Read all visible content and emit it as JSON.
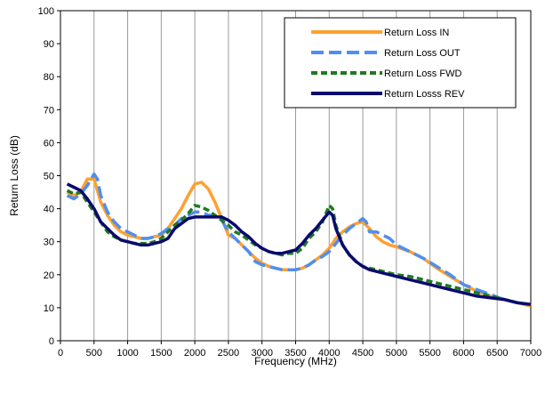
{
  "chart_data": {
    "type": "line",
    "title": "",
    "xlabel": "Frequency (MHz)",
    "ylabel": "Return Loss (dB)",
    "xlim": [
      0,
      7000
    ],
    "ylim": [
      0,
      100
    ],
    "x_ticks": [
      0,
      500,
      1000,
      1500,
      2000,
      2500,
      3000,
      3500,
      4000,
      4500,
      5000,
      5500,
      6000,
      6500,
      7000
    ],
    "y_ticks": [
      0,
      10,
      20,
      30,
      40,
      50,
      60,
      70,
      80,
      90,
      100
    ],
    "grid": "vertical",
    "legend_position": "top-right",
    "series": [
      {
        "name": "Return Loss IN",
        "color": "#FFA030",
        "dash": "solid",
        "points": [
          [
            100,
            45
          ],
          [
            200,
            44
          ],
          [
            300,
            45
          ],
          [
            400,
            49
          ],
          [
            500,
            49
          ],
          [
            600,
            42
          ],
          [
            700,
            38
          ],
          [
            800,
            35
          ],
          [
            900,
            33
          ],
          [
            1000,
            32
          ],
          [
            1100,
            31.5
          ],
          [
            1200,
            31
          ],
          [
            1300,
            31
          ],
          [
            1400,
            31.5
          ],
          [
            1500,
            32
          ],
          [
            1600,
            34
          ],
          [
            1700,
            37
          ],
          [
            1800,
            40
          ],
          [
            1900,
            44
          ],
          [
            2000,
            47.5
          ],
          [
            2100,
            48
          ],
          [
            2200,
            46
          ],
          [
            2300,
            42
          ],
          [
            2400,
            37
          ],
          [
            2500,
            32
          ],
          [
            2600,
            31
          ],
          [
            2700,
            29
          ],
          [
            2800,
            27
          ],
          [
            2900,
            25
          ],
          [
            3000,
            23.5
          ],
          [
            3100,
            22.5
          ],
          [
            3200,
            22
          ],
          [
            3300,
            21.5
          ],
          [
            3400,
            21.5
          ],
          [
            3500,
            21.5
          ],
          [
            3600,
            22
          ],
          [
            3700,
            23
          ],
          [
            3800,
            24.5
          ],
          [
            3900,
            26
          ],
          [
            4000,
            28
          ],
          [
            4100,
            31
          ],
          [
            4200,
            33
          ],
          [
            4300,
            34.5
          ],
          [
            4400,
            35.5
          ],
          [
            4500,
            36
          ],
          [
            4600,
            34
          ],
          [
            4700,
            31.5
          ],
          [
            4800,
            30
          ],
          [
            4900,
            29
          ],
          [
            5000,
            28.5
          ],
          [
            5200,
            27
          ],
          [
            5400,
            25
          ],
          [
            5600,
            22
          ],
          [
            5800,
            19.5
          ],
          [
            6000,
            17
          ],
          [
            6200,
            15
          ],
          [
            6400,
            13.5
          ],
          [
            6600,
            12.5
          ],
          [
            6800,
            11.5
          ],
          [
            7000,
            10.5
          ]
        ]
      },
      {
        "name": "Return Loss OUT",
        "color": "#4F8EF0",
        "dash": "long",
        "points": [
          [
            100,
            44
          ],
          [
            200,
            43
          ],
          [
            300,
            44.5
          ],
          [
            400,
            47
          ],
          [
            500,
            50.5
          ],
          [
            550,
            49
          ],
          [
            600,
            44
          ],
          [
            700,
            39
          ],
          [
            800,
            36
          ],
          [
            900,
            34
          ],
          [
            1000,
            33
          ],
          [
            1100,
            32
          ],
          [
            1200,
            31
          ],
          [
            1300,
            31
          ],
          [
            1400,
            31.5
          ],
          [
            1500,
            32.5
          ],
          [
            1600,
            34
          ],
          [
            1700,
            35
          ],
          [
            1800,
            37
          ],
          [
            1900,
            38
          ],
          [
            2000,
            39
          ],
          [
            2100,
            39
          ],
          [
            2200,
            38
          ],
          [
            2300,
            38
          ],
          [
            2400,
            36.5
          ],
          [
            2500,
            33
          ],
          [
            2600,
            31
          ],
          [
            2700,
            29
          ],
          [
            2800,
            27
          ],
          [
            2900,
            24
          ],
          [
            3000,
            23
          ],
          [
            3100,
            22.5
          ],
          [
            3200,
            22
          ],
          [
            3300,
            21.5
          ],
          [
            3400,
            21.5
          ],
          [
            3500,
            21.5
          ],
          [
            3600,
            22
          ],
          [
            3700,
            23
          ],
          [
            3800,
            24.5
          ],
          [
            3900,
            25.5
          ],
          [
            4000,
            27
          ],
          [
            4100,
            29.5
          ],
          [
            4200,
            32
          ],
          [
            4300,
            34
          ],
          [
            4400,
            35.5
          ],
          [
            4500,
            37
          ],
          [
            4550,
            36
          ],
          [
            4600,
            33
          ],
          [
            4700,
            33
          ],
          [
            4800,
            32
          ],
          [
            4900,
            31
          ],
          [
            5000,
            29
          ],
          [
            5200,
            27
          ],
          [
            5400,
            25
          ],
          [
            5600,
            22.5
          ],
          [
            5800,
            20
          ],
          [
            6000,
            17
          ],
          [
            6200,
            15.5
          ],
          [
            6400,
            14
          ],
          [
            6600,
            12.5
          ],
          [
            6800,
            11.5
          ],
          [
            7000,
            11
          ]
        ]
      },
      {
        "name": "Return Loss FWD",
        "color": "#1E7A1E",
        "dash": "short",
        "points": [
          [
            100,
            45.5
          ],
          [
            200,
            44.5
          ],
          [
            300,
            45
          ],
          [
            400,
            42
          ],
          [
            500,
            39
          ],
          [
            600,
            36
          ],
          [
            700,
            33
          ],
          [
            800,
            31.5
          ],
          [
            900,
            30.5
          ],
          [
            1000,
            30
          ],
          [
            1100,
            29.5
          ],
          [
            1200,
            29.5
          ],
          [
            1300,
            29.5
          ],
          [
            1400,
            30
          ],
          [
            1500,
            31
          ],
          [
            1600,
            33
          ],
          [
            1700,
            35
          ],
          [
            1800,
            36.5
          ],
          [
            1900,
            38.5
          ],
          [
            2000,
            41
          ],
          [
            2100,
            40.5
          ],
          [
            2200,
            39.5
          ],
          [
            2300,
            38
          ],
          [
            2400,
            36.5
          ],
          [
            2500,
            35
          ],
          [
            2600,
            33
          ],
          [
            2700,
            32
          ],
          [
            2800,
            30.5
          ],
          [
            2900,
            29
          ],
          [
            3000,
            28
          ],
          [
            3100,
            27
          ],
          [
            3200,
            26.5
          ],
          [
            3300,
            26
          ],
          [
            3400,
            26.5
          ],
          [
            3500,
            26.5
          ],
          [
            3600,
            28
          ],
          [
            3700,
            31
          ],
          [
            3800,
            33
          ],
          [
            3900,
            36
          ],
          [
            4000,
            41
          ],
          [
            4050,
            40
          ],
          [
            4100,
            35
          ],
          [
            4200,
            29
          ],
          [
            4300,
            26
          ],
          [
            4400,
            24
          ],
          [
            4500,
            22.5
          ],
          [
            4600,
            22
          ],
          [
            4700,
            21.5
          ],
          [
            4800,
            21
          ],
          [
            4900,
            20.5
          ],
          [
            5000,
            20
          ],
          [
            5200,
            19.5
          ],
          [
            5400,
            18.5
          ],
          [
            5600,
            17.5
          ],
          [
            5800,
            16.5
          ],
          [
            6000,
            15.5
          ],
          [
            6200,
            14.5
          ],
          [
            6400,
            13.5
          ],
          [
            6600,
            12.5
          ],
          [
            6800,
            11.5
          ],
          [
            7000,
            11
          ]
        ]
      },
      {
        "name": "Return Losss REV",
        "color": "#0A0A6E",
        "dash": "solid",
        "points": [
          [
            100,
            47.5
          ],
          [
            200,
            46.5
          ],
          [
            300,
            45.5
          ],
          [
            400,
            43
          ],
          [
            500,
            40
          ],
          [
            600,
            36
          ],
          [
            700,
            34
          ],
          [
            800,
            32
          ],
          [
            900,
            30.5
          ],
          [
            1000,
            30
          ],
          [
            1100,
            29.5
          ],
          [
            1200,
            29
          ],
          [
            1300,
            29
          ],
          [
            1400,
            29.5
          ],
          [
            1500,
            30
          ],
          [
            1600,
            31
          ],
          [
            1700,
            34
          ],
          [
            1800,
            35.5
          ],
          [
            1900,
            37
          ],
          [
            2000,
            37.5
          ],
          [
            2100,
            37.5
          ],
          [
            2200,
            37.5
          ],
          [
            2300,
            37.5
          ],
          [
            2400,
            37.5
          ],
          [
            2500,
            36.5
          ],
          [
            2600,
            35
          ],
          [
            2700,
            33
          ],
          [
            2800,
            31.5
          ],
          [
            2900,
            29.5
          ],
          [
            3000,
            28
          ],
          [
            3100,
            27
          ],
          [
            3200,
            26.5
          ],
          [
            3300,
            26.5
          ],
          [
            3400,
            27
          ],
          [
            3500,
            27.5
          ],
          [
            3600,
            29.5
          ],
          [
            3700,
            32
          ],
          [
            3800,
            34
          ],
          [
            3900,
            36.5
          ],
          [
            4000,
            39
          ],
          [
            4050,
            38
          ],
          [
            4100,
            34
          ],
          [
            4200,
            29
          ],
          [
            4300,
            26
          ],
          [
            4400,
            24
          ],
          [
            4500,
            22.5
          ],
          [
            4600,
            21.5
          ],
          [
            4700,
            21
          ],
          [
            4800,
            20.5
          ],
          [
            4900,
            20
          ],
          [
            5000,
            19.5
          ],
          [
            5200,
            18.5
          ],
          [
            5400,
            17.5
          ],
          [
            5600,
            16.5
          ],
          [
            5800,
            15.5
          ],
          [
            6000,
            14.5
          ],
          [
            6200,
            13.5
          ],
          [
            6400,
            13
          ],
          [
            6600,
            12.5
          ],
          [
            6800,
            11.5
          ],
          [
            7000,
            11
          ]
        ]
      }
    ]
  }
}
